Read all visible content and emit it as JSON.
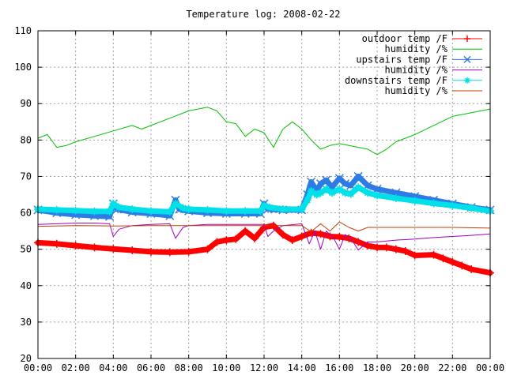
{
  "chart_data": {
    "type": "line",
    "title": "Temperature log: 2008-02-22",
    "xlabel": "",
    "ylabel": "",
    "xlim": [
      0,
      24
    ],
    "ylim": [
      20,
      110
    ],
    "grid": true,
    "legend_position": "top-right",
    "x_ticks": [
      {
        "value": 0,
        "label": "00:00"
      },
      {
        "value": 2,
        "label": "02:00"
      },
      {
        "value": 4,
        "label": "04:00"
      },
      {
        "value": 6,
        "label": "06:00"
      },
      {
        "value": 8,
        "label": "08:00"
      },
      {
        "value": 10,
        "label": "10:00"
      },
      {
        "value": 12,
        "label": "12:00"
      },
      {
        "value": 14,
        "label": "14:00"
      },
      {
        "value": 16,
        "label": "16:00"
      },
      {
        "value": 18,
        "label": "18:00"
      },
      {
        "value": 20,
        "label": "20:00"
      },
      {
        "value": 22,
        "label": "22:00"
      },
      {
        "value": 24,
        "label": "00:00"
      }
    ],
    "y_ticks": [
      {
        "value": 20,
        "label": "20"
      },
      {
        "value": 30,
        "label": "30"
      },
      {
        "value": 40,
        "label": "40"
      },
      {
        "value": 50,
        "label": "50"
      },
      {
        "value": 60,
        "label": "60"
      },
      {
        "value": 70,
        "label": "70"
      },
      {
        "value": 80,
        "label": "80"
      },
      {
        "value": 90,
        "label": "90"
      },
      {
        "value": 100,
        "label": "100"
      },
      {
        "value": 110,
        "label": "110"
      }
    ],
    "series": [
      {
        "name": "outdoor temp /F",
        "color": "#ff0000",
        "marker": "plus",
        "style": "thick",
        "points": [
          [
            0,
            51.8
          ],
          [
            1,
            51.5
          ],
          [
            2,
            51
          ],
          [
            3,
            50.5
          ],
          [
            4,
            50.1
          ],
          [
            5,
            49.7
          ],
          [
            6,
            49.3
          ],
          [
            7,
            49.2
          ],
          [
            8,
            49.3
          ],
          [
            9,
            50
          ],
          [
            9.5,
            52
          ],
          [
            10,
            52.5
          ],
          [
            10.5,
            52.8
          ],
          [
            11,
            55
          ],
          [
            11.5,
            53
          ],
          [
            12,
            56
          ],
          [
            12.5,
            56.5
          ],
          [
            13,
            54
          ],
          [
            13.5,
            52.5
          ],
          [
            14,
            53.5
          ],
          [
            14.5,
            54.5
          ],
          [
            15,
            54.2
          ],
          [
            15.5,
            53.5
          ],
          [
            16,
            53.4
          ],
          [
            16.5,
            53
          ],
          [
            17,
            52
          ],
          [
            17.5,
            51
          ],
          [
            18,
            50.5
          ],
          [
            18.5,
            50.5
          ],
          [
            19,
            50
          ],
          [
            19.5,
            49.5
          ],
          [
            20,
            48.3
          ],
          [
            21,
            48.5
          ],
          [
            21.5,
            47.5
          ],
          [
            22,
            46.5
          ],
          [
            22.5,
            45.5
          ],
          [
            23,
            44.5
          ],
          [
            24,
            43.5
          ]
        ]
      },
      {
        "name": "humidity /%",
        "color": "#00c000",
        "marker": "none",
        "style": "thin",
        "points": [
          [
            0,
            80.5
          ],
          [
            0.5,
            81.5
          ],
          [
            1,
            78
          ],
          [
            1.5,
            78.5
          ],
          [
            2,
            79.5
          ],
          [
            3,
            81
          ],
          [
            4,
            82.5
          ],
          [
            5,
            84
          ],
          [
            5.5,
            83
          ],
          [
            6,
            84
          ],
          [
            7,
            86
          ],
          [
            8,
            88
          ],
          [
            9,
            89
          ],
          [
            9.5,
            88
          ],
          [
            10,
            85
          ],
          [
            10.5,
            84.5
          ],
          [
            11,
            81
          ],
          [
            11.5,
            83
          ],
          [
            12,
            82
          ],
          [
            12.5,
            78
          ],
          [
            13,
            83
          ],
          [
            13.5,
            85
          ],
          [
            14,
            83
          ],
          [
            14.5,
            80
          ],
          [
            15,
            77.5
          ],
          [
            15.5,
            78.5
          ],
          [
            16,
            79
          ],
          [
            16.5,
            78.5
          ],
          [
            17,
            78
          ],
          [
            17.5,
            77.5
          ],
          [
            18,
            76
          ],
          [
            18.5,
            77.5
          ],
          [
            19,
            79.5
          ],
          [
            20,
            81.5
          ],
          [
            21,
            84
          ],
          [
            22,
            86.5
          ],
          [
            23,
            87.5
          ],
          [
            24,
            88.5
          ]
        ]
      },
      {
        "name": "upstairs temp /F",
        "color": "#2e7be5",
        "marker": "x",
        "style": "thick",
        "points": [
          [
            0,
            60.8
          ],
          [
            1,
            60
          ],
          [
            2,
            59.5
          ],
          [
            3,
            59.2
          ],
          [
            3.8,
            59
          ],
          [
            4,
            62.5
          ],
          [
            4.2,
            61
          ],
          [
            5,
            60.2
          ],
          [
            6,
            59.8
          ],
          [
            7,
            59.2
          ],
          [
            7.3,
            63.5
          ],
          [
            7.5,
            61
          ],
          [
            8,
            60.5
          ],
          [
            9,
            60
          ],
          [
            10,
            59.8
          ],
          [
            11,
            59.8
          ],
          [
            11.8,
            59.8
          ],
          [
            12,
            62.5
          ],
          [
            12.2,
            61
          ],
          [
            13,
            60.8
          ],
          [
            14,
            60.8
          ],
          [
            14.3,
            65
          ],
          [
            14.5,
            68.5
          ],
          [
            14.8,
            66
          ],
          [
            15,
            68
          ],
          [
            15.3,
            69
          ],
          [
            15.6,
            67
          ],
          [
            16,
            69.5
          ],
          [
            16.3,
            68
          ],
          [
            16.6,
            67.5
          ],
          [
            17,
            70
          ],
          [
            17.5,
            67.5
          ],
          [
            18,
            66.5
          ],
          [
            19,
            65.5
          ],
          [
            20,
            64.5
          ],
          [
            21,
            63.5
          ],
          [
            22,
            62.5
          ],
          [
            23,
            61.5
          ],
          [
            24,
            60.8
          ]
        ]
      },
      {
        "name": "humidity /%",
        "color": "#a000c0",
        "marker": "none",
        "style": "thin",
        "points": [
          [
            0,
            56.8
          ],
          [
            1,
            57
          ],
          [
            2,
            57.2
          ],
          [
            3,
            57.2
          ],
          [
            3.8,
            57
          ],
          [
            4,
            53.5
          ],
          [
            4.3,
            55.5
          ],
          [
            5,
            56.5
          ],
          [
            6,
            56.8
          ],
          [
            7,
            57
          ],
          [
            7.3,
            53
          ],
          [
            7.7,
            56
          ],
          [
            8,
            56.5
          ],
          [
            9,
            56.8
          ],
          [
            10,
            56.8
          ],
          [
            11,
            56.8
          ],
          [
            12,
            56.8
          ],
          [
            12.2,
            53.5
          ],
          [
            12.5,
            55
          ],
          [
            13,
            56.5
          ],
          [
            14,
            57
          ],
          [
            14.4,
            51.5
          ],
          [
            14.7,
            55
          ],
          [
            15,
            50
          ],
          [
            15.3,
            55
          ],
          [
            15.7,
            53
          ],
          [
            16,
            50
          ],
          [
            16.3,
            54
          ],
          [
            16.6,
            53
          ],
          [
            17,
            49.8
          ],
          [
            17.5,
            52
          ],
          [
            18,
            52
          ],
          [
            19,
            52.5
          ],
          [
            20,
            52.8
          ],
          [
            21,
            53.2
          ],
          [
            22,
            53.5
          ],
          [
            23,
            53.8
          ],
          [
            24,
            54.2
          ]
        ]
      },
      {
        "name": "downstairs temp /F",
        "color": "#00e0e8",
        "marker": "star",
        "style": "thick",
        "points": [
          [
            0,
            61
          ],
          [
            1,
            60.8
          ],
          [
            2,
            60.6
          ],
          [
            3,
            60.4
          ],
          [
            3.8,
            60.4
          ],
          [
            4,
            62.5
          ],
          [
            4.3,
            61.5
          ],
          [
            5,
            61
          ],
          [
            6,
            60.5
          ],
          [
            7,
            60.3
          ],
          [
            7.3,
            62.5
          ],
          [
            7.7,
            61.3
          ],
          [
            8,
            61
          ],
          [
            9,
            60.8
          ],
          [
            10,
            60.5
          ],
          [
            11,
            60.5
          ],
          [
            11.8,
            60.5
          ],
          [
            12,
            62
          ],
          [
            12.3,
            61.5
          ],
          [
            13,
            61
          ],
          [
            14,
            61
          ],
          [
            14.3,
            63.5
          ],
          [
            14.5,
            66
          ],
          [
            14.8,
            65
          ],
          [
            15,
            65.5
          ],
          [
            15.3,
            66.5
          ],
          [
            15.6,
            65.5
          ],
          [
            16,
            66.5
          ],
          [
            16.3,
            65.5
          ],
          [
            16.6,
            65.2
          ],
          [
            17,
            67
          ],
          [
            17.5,
            65.5
          ],
          [
            18,
            64.8
          ],
          [
            19,
            64
          ],
          [
            20,
            63.3
          ],
          [
            21,
            62.6
          ],
          [
            22,
            62
          ],
          [
            23,
            61.3
          ],
          [
            24,
            60.5
          ]
        ]
      },
      {
        "name": "humidity /%",
        "color": "#c04000",
        "marker": "none",
        "style": "thin",
        "points": [
          [
            0,
            56.3
          ],
          [
            2,
            56.5
          ],
          [
            4,
            56.4
          ],
          [
            6,
            56.5
          ],
          [
            8,
            56.5
          ],
          [
            10,
            56.5
          ],
          [
            12,
            56.5
          ],
          [
            13,
            56.5
          ],
          [
            14,
            56.5
          ],
          [
            14.5,
            54.8
          ],
          [
            15,
            57
          ],
          [
            15.5,
            55
          ],
          [
            16,
            57.5
          ],
          [
            16.5,
            56
          ],
          [
            17,
            55
          ],
          [
            17.5,
            56
          ],
          [
            18,
            56
          ],
          [
            20,
            56
          ],
          [
            22,
            56
          ],
          [
            24,
            55.8
          ]
        ]
      }
    ]
  }
}
